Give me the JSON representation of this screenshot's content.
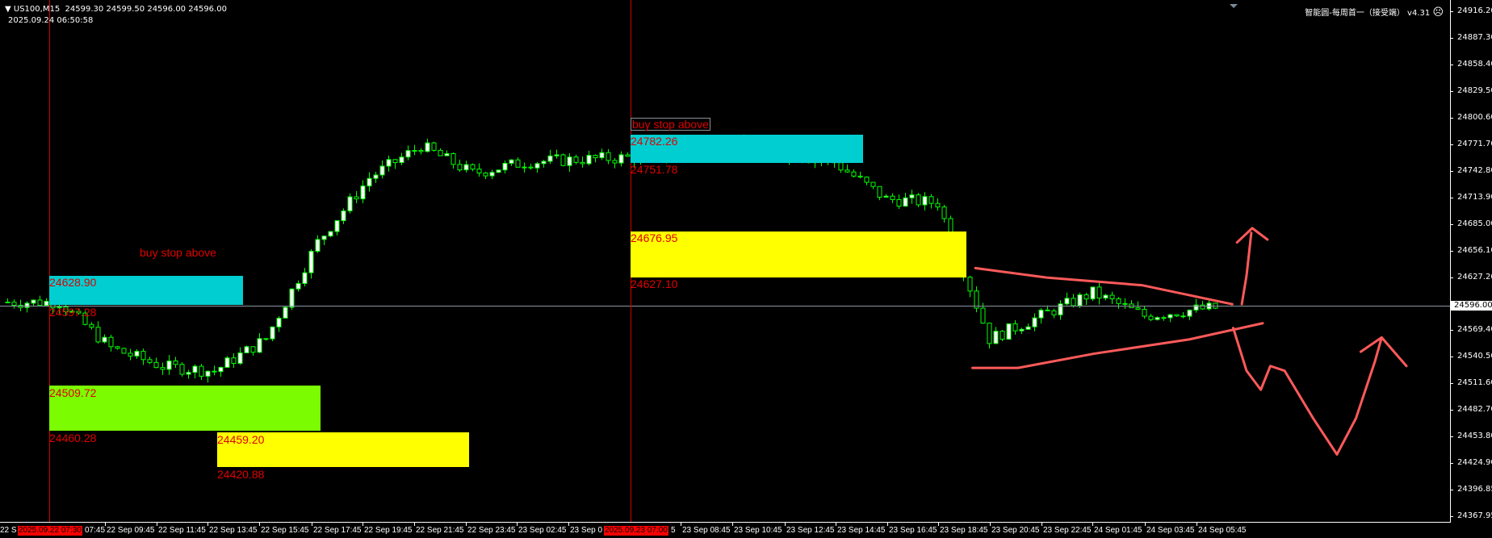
{
  "header": {
    "symbol": "US100,M15",
    "quote": "24599.30 24599.50 24596.00 24596.00",
    "datetime": "2025.09.24 06:50:58",
    "indicator_name": "智能圆-每周首一（接受端） v4.31",
    "indicator_status_icon": "sad-face-icon"
  },
  "price_axis": {
    "labels": [
      "24916.20",
      "24887.30",
      "24858.40",
      "24829.50",
      "24800.60",
      "24771.70",
      "24742.80",
      "24713.90",
      "24685.00",
      "24656.10",
      "24627.20",
      "24598.30",
      "24569.40",
      "24540.50",
      "24511.60",
      "24482.70",
      "24453.80",
      "24424.90",
      "24396.85",
      "24367.95"
    ],
    "bid": "24596.00"
  },
  "time_axis": {
    "first_partial": "22 S",
    "labels": [
      "22 Sep 09:45",
      "22 Sep 11:45",
      "22 Sep 13:45",
      "22 Sep 15:45",
      "22 Sep 17:45",
      "22 Sep 19:45",
      "22 Sep 21:45",
      "22 Sep 23:45",
      "23 Sep 02:45",
      "23 Sep 0",
      "23 Sep 08:45",
      "23 Sep 10:45",
      "23 Sep 12:45",
      "23 Sep 14:45",
      "23 Sep 16:45",
      "23 Sep 18:45",
      "23 Sep 20:45",
      "23 Sep 22:45",
      "24 Sep 01:45",
      "24 Sep 03:45",
      "24 Sep 05:45"
    ],
    "partial_after_first_marker": "07:45",
    "partial_after_second_marker": "5",
    "markers": [
      "2025.09.22 07:30",
      "2025.09.23 07:00"
    ]
  },
  "zones": [
    {
      "name": "cyan-zone-1",
      "color": "#00ced1",
      "top": "24628.90",
      "bottom": "24597.28",
      "note": "buy stop above"
    },
    {
      "name": "green-zone",
      "color": "#7cfc00",
      "top": "24509.72",
      "bottom": "24460.28"
    },
    {
      "name": "yellow-zone-1",
      "color": "#ffff00",
      "top": "24459.20",
      "bottom": "24420.88"
    },
    {
      "name": "cyan-zone-2",
      "color": "#00ced1",
      "top": "24782.26",
      "bottom": "24751.78",
      "note": "buy stop above"
    },
    {
      "name": "yellow-zone-2",
      "color": "#ffff00",
      "top": "24676.95",
      "bottom": "24627.10"
    }
  ],
  "colors": {
    "background": "#000000",
    "candle": "#00ff00",
    "bull_body": "#ffffff",
    "bear_body": "#000000",
    "marker_line": "#d00000",
    "annotation": "#ff5a5a",
    "label_text": "#e00000"
  },
  "chart_data": {
    "type": "candlestick",
    "timeframe": "M15",
    "approx_price_path_every_2h": [
      24600,
      24600,
      24550,
      24530,
      24525,
      24560,
      24665,
      24735,
      24770,
      24740,
      24752,
      24755,
      24757,
      24762,
      24770,
      24762,
      24752,
      24712,
      24708,
      24560,
      24585,
      24610,
      24585,
      24592,
      24596
    ],
    "ylim": [
      24367.95,
      24916.2
    ]
  }
}
